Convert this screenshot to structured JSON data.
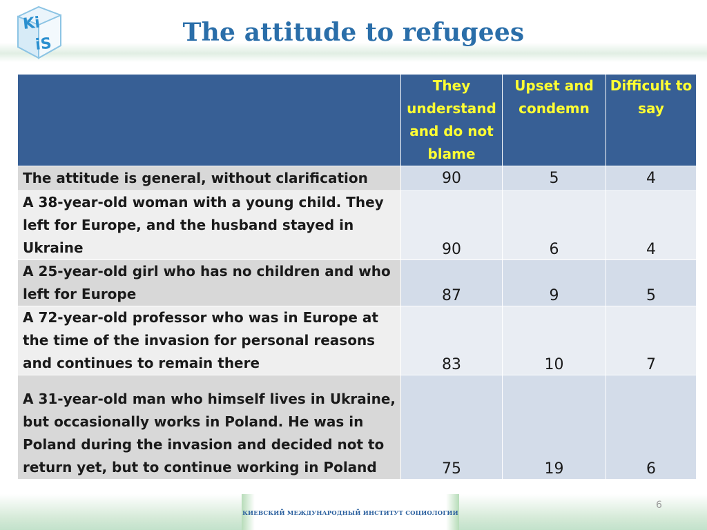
{
  "logo": {
    "top_text": "Ki",
    "bottom_text": "iS"
  },
  "title": "The attitude to refugees",
  "table": {
    "headers": [
      "",
      "They understand and do not blame",
      "Upset and condemn",
      "Difficult to say"
    ],
    "rows": [
      {
        "label": "The attitude is general, without clarification",
        "values": [
          "90",
          "5",
          "4"
        ]
      },
      {
        "label": "A 38-year-old woman with a young child. They left for Europe, and the husband stayed in Ukraine",
        "values": [
          "90",
          "6",
          "4"
        ]
      },
      {
        "label": "A 25-year-old girl who has no children and who left for Europe",
        "values": [
          "87",
          "9",
          "5"
        ]
      },
      {
        "label": "A 72-year-old professor who was in Europe at the time of the invasion for personal reasons and continues to remain there",
        "values": [
          "83",
          "10",
          "7"
        ]
      },
      {
        "label": "A 31-year-old man who himself lives in Ukraine, but occasionally works in Poland. He was in Poland during the invasion and decided not to return yet, but to continue working in Poland",
        "values": [
          "75",
          "19",
          "6"
        ]
      }
    ]
  },
  "page_number": "6",
  "footer": "КИЕВСКИЙ МЕЖДУНАРОДНЫЙ ИНСТИТУТ СОЦИОЛОГИИ",
  "colors": {
    "header_bg": "#375f95",
    "header_text": "#ffff33",
    "title": "#2a6ea9"
  }
}
